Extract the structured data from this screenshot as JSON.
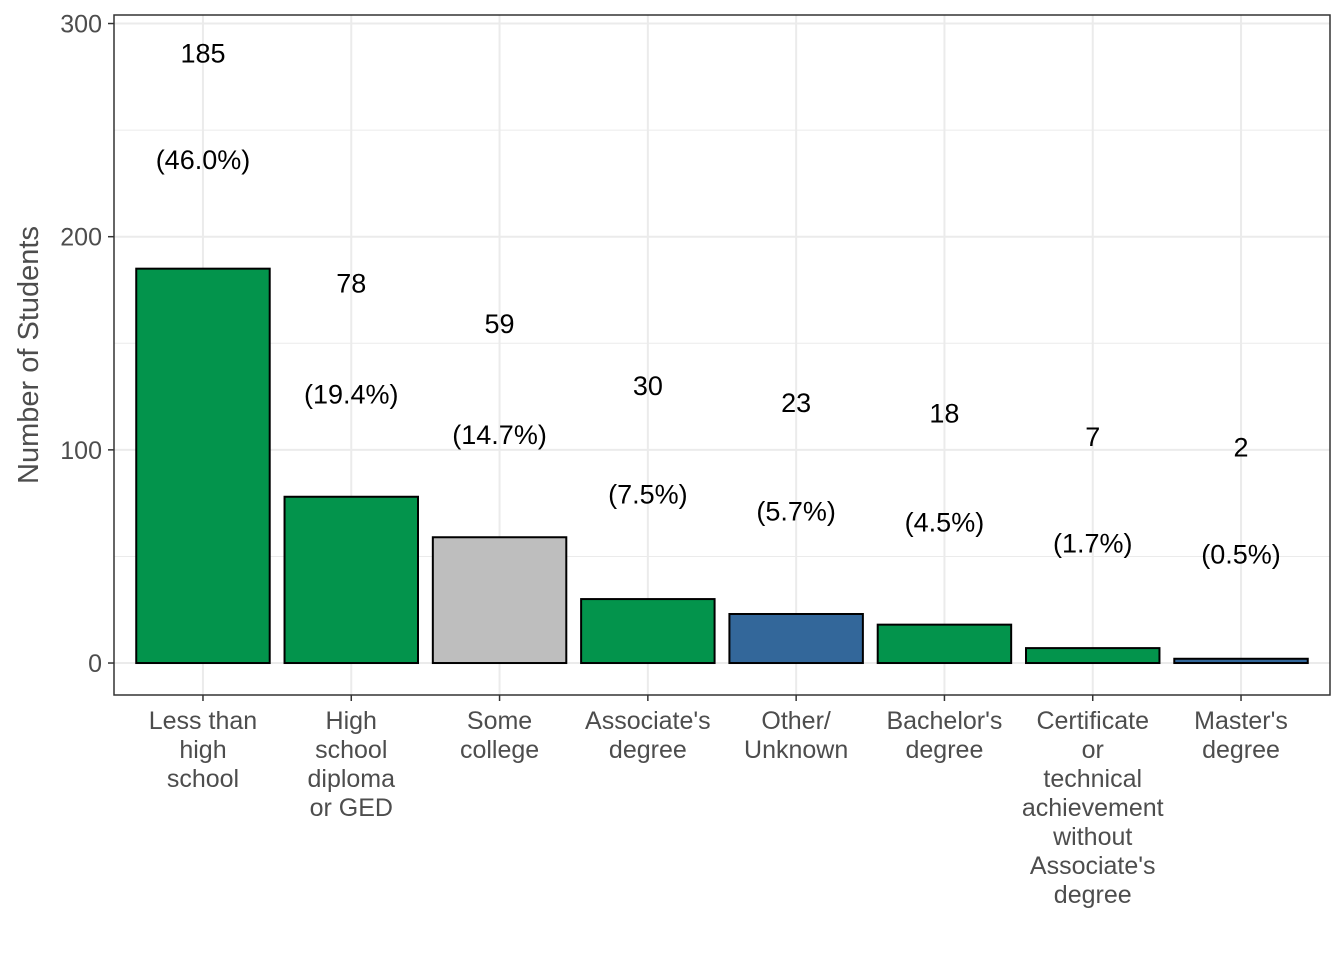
{
  "chart_data": {
    "type": "bar",
    "title": "",
    "xlabel": "",
    "ylabel": "Number of Students",
    "ylim": [
      -15,
      304
    ],
    "yticks": [
      0,
      100,
      200,
      300
    ],
    "grid": true,
    "legend": "none",
    "categories": [
      [
        "Less than",
        "high",
        "school"
      ],
      [
        "High",
        "school",
        "diploma",
        "or GED"
      ],
      [
        "Some",
        "college"
      ],
      [
        "Associate's",
        "degree"
      ],
      [
        "Other/",
        "Unknown"
      ],
      [
        "Bachelor's",
        "degree"
      ],
      [
        "Certificate",
        "or",
        "technical",
        "achievement",
        "without",
        "Associate's",
        "degree"
      ],
      [
        "Master's",
        "degree"
      ]
    ],
    "values": [
      185,
      78,
      59,
      30,
      23,
      18,
      7,
      2
    ],
    "percent_labels": [
      "(46.0%)",
      "(19.4%)",
      "(14.7%)",
      "(7.5%)",
      "(5.7%)",
      "(4.5%)",
      "(1.7%)",
      "(0.5%)"
    ],
    "bar_colors": [
      "#03944c",
      "#03944c",
      "#bebebe",
      "#03944c",
      "#33679a",
      "#03944c",
      "#03944c",
      "#33679a"
    ],
    "count_label_y": [
      286,
      178,
      159,
      130,
      122,
      117,
      106,
      101
    ],
    "percent_label_y": [
      236,
      126,
      107,
      79,
      71,
      66,
      56,
      51
    ]
  }
}
